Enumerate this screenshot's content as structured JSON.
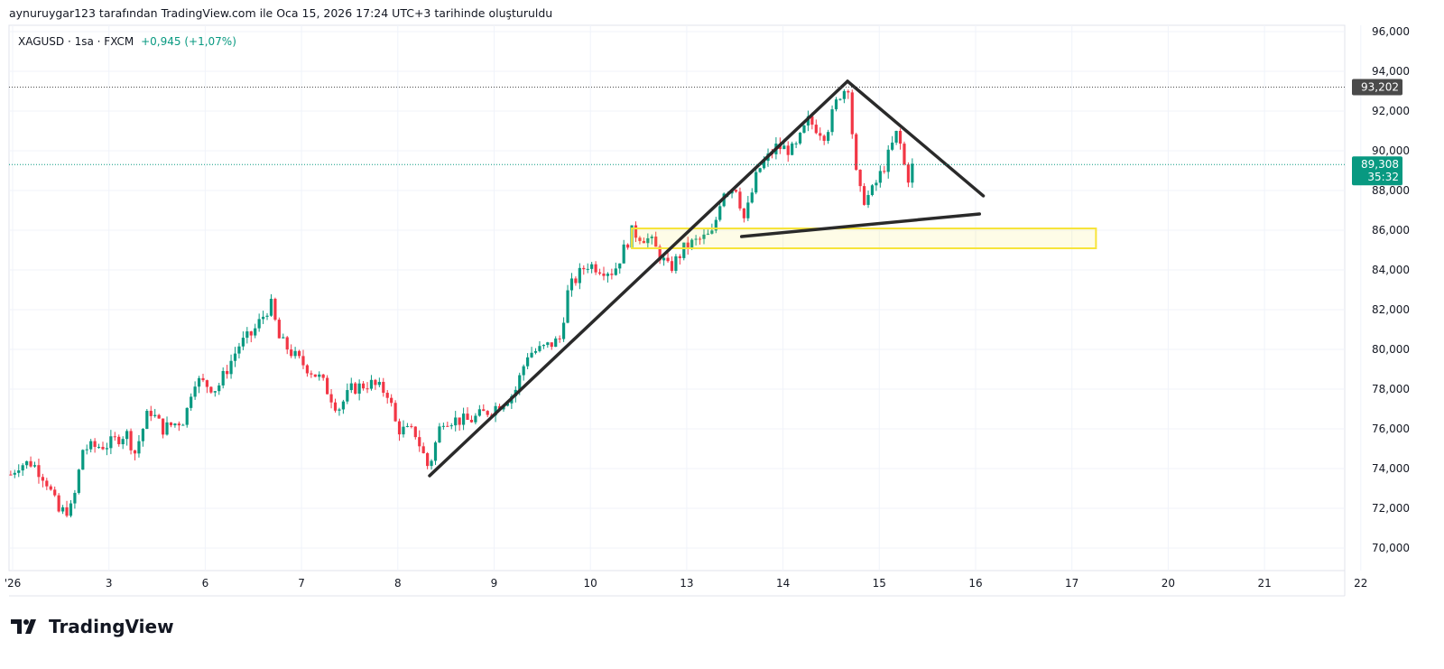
{
  "caption": "aynuruygar123 tarafından TradingView.com ile Oca 15, 2026 17:24 UTC+3 tarihinde oluşturuldu",
  "legend": {
    "symbol": "XAGUSD · 1sa · FXCM",
    "change": "+0,945 (+1,07%)"
  },
  "logo": "TradingView",
  "colors": {
    "up": "#089981",
    "down": "#f23645",
    "grid": "#f0f3fa",
    "drawing": "#2a2a2a",
    "zone": "#f7e43a"
  },
  "chart_data": {
    "type": "candlestick",
    "symbol": "XAGUSD",
    "interval": "1h",
    "ylim": [
      70,
      96
    ],
    "y_ticks": [
      "70,000",
      "72,000",
      "74,000",
      "76,000",
      "78,000",
      "80,000",
      "82,000",
      "84,000",
      "86,000",
      "88,000",
      "90,000",
      "92,000",
      "94,000",
      "96,000"
    ],
    "x_ticks": [
      "'26",
      "3",
      "6",
      "7",
      "8",
      "9",
      "10",
      "13",
      "14",
      "15",
      "16",
      "17",
      "20",
      "21",
      "22"
    ],
    "price_path": [
      [
        -0.02,
        73.7
      ],
      [
        0.06,
        74.2
      ],
      [
        0.2,
        74.3
      ],
      [
        0.34,
        73.5
      ],
      [
        0.48,
        71.8
      ],
      [
        0.62,
        72.0
      ],
      [
        0.73,
        75.0
      ],
      [
        0.99,
        75.2
      ],
      [
        1.18,
        75.8
      ],
      [
        1.27,
        74.8
      ],
      [
        1.42,
        77.0
      ],
      [
        1.56,
        76.0
      ],
      [
        1.79,
        76.5
      ],
      [
        1.88,
        78.5
      ],
      [
        2.12,
        78.0
      ],
      [
        2.35,
        80.2
      ],
      [
        2.49,
        80.8
      ],
      [
        2.68,
        82.3
      ],
      [
        2.77,
        80.5
      ],
      [
        2.96,
        79.5
      ],
      [
        3.2,
        78.5
      ],
      [
        3.38,
        77.0
      ],
      [
        3.52,
        78.0
      ],
      [
        3.71,
        78.3
      ],
      [
        3.9,
        77.8
      ],
      [
        3.99,
        76.0
      ],
      [
        4.18,
        75.8
      ],
      [
        4.32,
        74.0
      ],
      [
        4.46,
        76.5
      ],
      [
        4.74,
        76.4
      ],
      [
        4.98,
        77.0
      ],
      [
        5.21,
        77.8
      ],
      [
        5.35,
        79.8
      ],
      [
        5.49,
        80.0
      ],
      [
        5.68,
        80.5
      ],
      [
        5.77,
        83.0
      ],
      [
        5.96,
        84.3
      ],
      [
        6.24,
        83.9
      ],
      [
        6.43,
        85.9
      ],
      [
        6.62,
        85.5
      ],
      [
        6.82,
        84.0
      ],
      [
        6.99,
        85.2
      ],
      [
        7.27,
        85.8
      ],
      [
        7.37,
        88.0
      ],
      [
        7.51,
        88.2
      ],
      [
        7.6,
        86.5
      ],
      [
        7.74,
        89.0
      ],
      [
        7.93,
        90.2
      ],
      [
        8.12,
        90.0
      ],
      [
        8.26,
        91.5
      ],
      [
        8.44,
        90.8
      ],
      [
        8.58,
        92.8
      ],
      [
        8.68,
        93.3
      ],
      [
        8.75,
        89.0
      ],
      [
        8.82,
        87.5
      ],
      [
        8.91,
        87.8
      ],
      [
        9.05,
        89.2
      ],
      [
        9.19,
        91.0
      ],
      [
        9.29,
        88.5
      ],
      [
        9.35,
        89.3
      ]
    ],
    "price_lines": [
      {
        "value": 93.202,
        "label": "93,202",
        "color": "#4a4a4a"
      },
      {
        "value": 89.308,
        "label": "89,308",
        "countdown": "35:32",
        "color": "#089981"
      }
    ],
    "drawings": {
      "trendlines": [
        [
          [
            4.33,
            73.64
          ],
          [
            8.67,
            93.5
          ]
        ],
        [
          [
            8.67,
            93.5
          ],
          [
            10.08,
            87.73
          ]
        ],
        [
          [
            7.57,
            85.68
          ],
          [
            10.04,
            86.82
          ]
        ]
      ],
      "zone": {
        "t": [
          6.43,
          11.25
        ],
        "price": [
          85.09,
          86.09
        ]
      }
    }
  }
}
